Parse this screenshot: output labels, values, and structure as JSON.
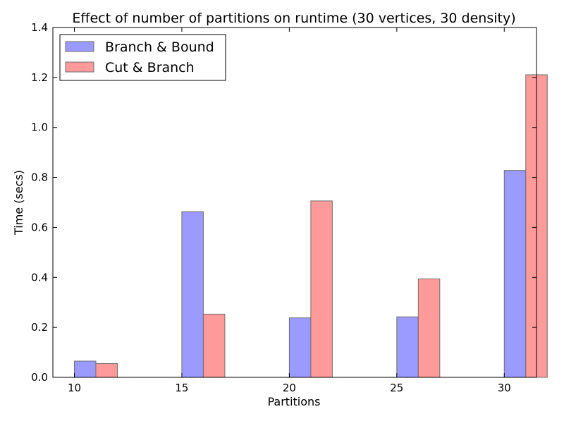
{
  "chart_data": {
    "type": "bar",
    "title": "Effect of number of partitions on runtime (30 vertices, 30 density)",
    "xlabel": "Partitions",
    "ylabel": "Time (secs)",
    "categories": [
      "10",
      "15",
      "20",
      "25",
      "30"
    ],
    "x_values": [
      10,
      15,
      20,
      25,
      30
    ],
    "xlim": [
      9,
      31.5
    ],
    "ylim": [
      0,
      1.4
    ],
    "yticks": [
      "0.0",
      "0.2",
      "0.4",
      "0.6",
      "0.8",
      "1.0",
      "1.2",
      "1.4"
    ],
    "ytick_values": [
      0,
      0.2,
      0.4,
      0.6,
      0.8,
      1.0,
      1.2,
      1.4
    ],
    "series": [
      {
        "name": "Branch & Bound",
        "color": "#9a9aff",
        "values": [
          0.065,
          0.663,
          0.238,
          0.242,
          0.828
        ]
      },
      {
        "name": "Cut & Branch",
        "color": "#ff9a9a",
        "values": [
          0.055,
          0.253,
          0.706,
          0.394,
          1.211
        ]
      }
    ],
    "grid": false,
    "legend_position": "top-left"
  }
}
